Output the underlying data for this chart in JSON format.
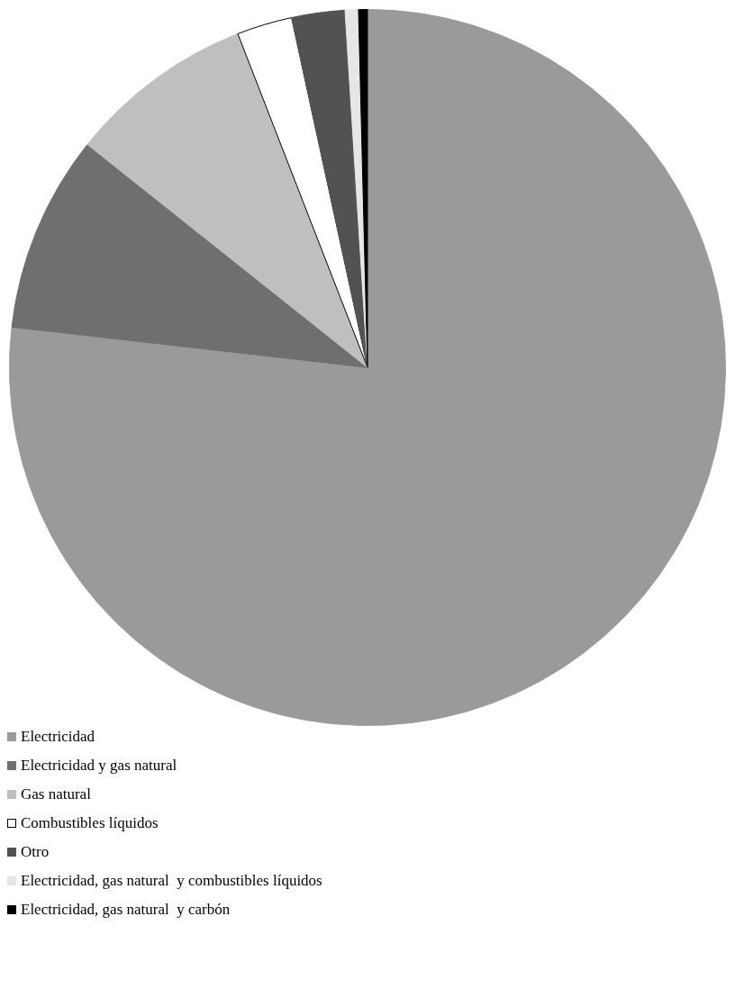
{
  "chart_data": {
    "type": "pie",
    "categories": [
      "Electricidad",
      "Electricidad y gas natural",
      "Gas natural",
      "Combustibles líquidos",
      "Otro",
      "Electricidad, gas natural  y combustibles líquidos",
      "Electricidad, gas natural  y carbón"
    ],
    "values": [
      76.8,
      8.9,
      8.4,
      2.5,
      2.4,
      0.6,
      0.4
    ],
    "colors": [
      "#999a99",
      "#6f6f6f",
      "#bfbfbf",
      "#ffffff",
      "#525252",
      "#e6e6e6",
      "#000000"
    ],
    "legend": "bottom left"
  }
}
